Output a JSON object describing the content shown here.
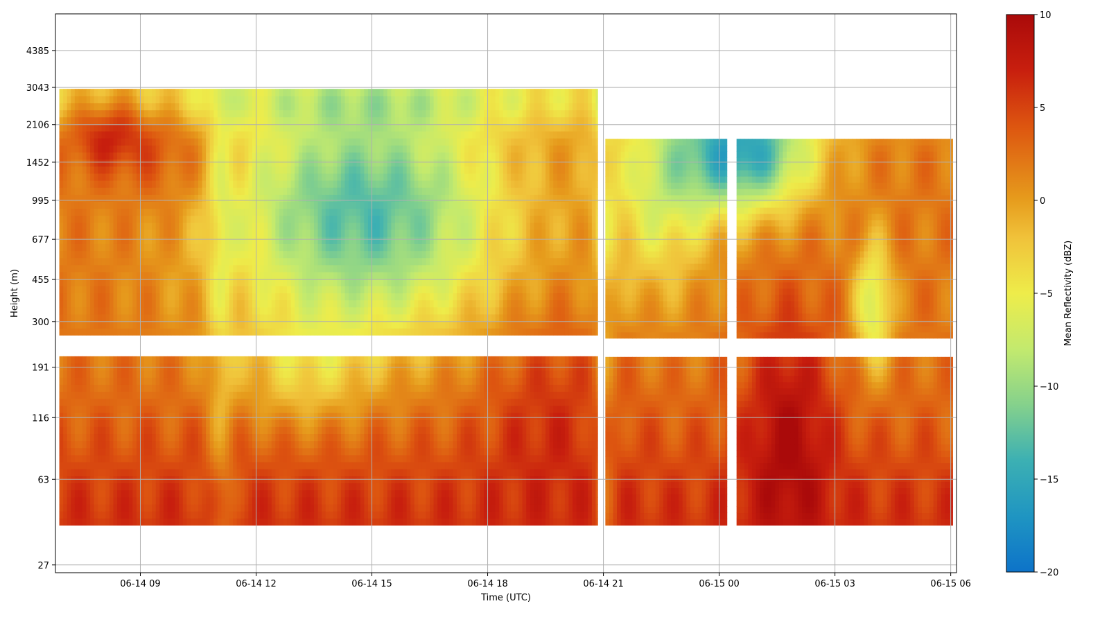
{
  "chart_data": {
    "type": "heatmap",
    "title": "",
    "xlabel": "Time (UTC)",
    "ylabel": "Height (m)",
    "colorbar_label": "Mean Reflectivity (dBZ)",
    "colormap": "RdYlBu_r",
    "x_ticks": [
      "06-14 09",
      "06-14 12",
      "06-14 15",
      "06-14 18",
      "06-14 21",
      "06-15 00",
      "06-15 03",
      "06-15 06"
    ],
    "x_tick_hours": [
      9,
      12,
      15,
      18,
      21,
      24,
      27,
      30
    ],
    "x_range_hours": [
      6.8,
      30.15
    ],
    "y_scale": "log",
    "y_ticks": [
      "27",
      "63",
      "116",
      "191",
      "300",
      "455",
      "677",
      "995",
      "1452",
      "2106",
      "3043",
      "4385"
    ],
    "y_tick_values": [
      27,
      63,
      116,
      191,
      300,
      455,
      677,
      995,
      1452,
      2106,
      3043,
      4385
    ],
    "y_range_m": [
      25,
      6300
    ],
    "colorbar_ticks": [
      "10",
      "5",
      "0",
      "−5",
      "−10",
      "−15",
      "−20"
    ],
    "colorbar_tick_values": [
      10,
      5,
      0,
      -5,
      -10,
      -15,
      -20
    ],
    "colorbar_range": [
      -20,
      10
    ],
    "grid": true,
    "data_coverage": [
      {
        "t_start": 6.9,
        "t_end": 20.85,
        "h_min": 40,
        "h_max": 3000
      },
      {
        "t_start": 21.05,
        "t_end": 24.2,
        "h_min": 40,
        "h_max": 1830
      },
      {
        "t_start": 24.45,
        "t_end": 30.05,
        "h_min": 40,
        "h_max": 1830
      }
    ],
    "data_gap_heights_m": [
      218,
      257
    ],
    "reflectivity_regions": [
      {
        "time": "06-14 08",
        "height_range_m": [
          1500,
          2700
        ],
        "dBZ": 9
      },
      {
        "time": "06-14 09-11",
        "height_range_m": [
          40,
          1500
        ],
        "dBZ": 4
      },
      {
        "time": "06-14 12-20",
        "height_range_m": [
          500,
          3000
        ],
        "dBZ": -13
      },
      {
        "time": "06-14 12-15",
        "height_range_m": [
          40,
          200
        ],
        "dBZ": 5
      },
      {
        "time": "06-14 19-21",
        "height_range_m": [
          40,
          150
        ],
        "dBZ": 7
      },
      {
        "time": "06-15 00-03",
        "height_range_m": [
          1200,
          2700
        ],
        "dBZ": -17
      },
      {
        "time": "06-15 01-03",
        "height_range_m": [
          40,
          500
        ],
        "dBZ": 8
      },
      {
        "time": "06-15 04-06",
        "height_range_m": [
          40,
          1830
        ],
        "dBZ": 1
      }
    ]
  }
}
